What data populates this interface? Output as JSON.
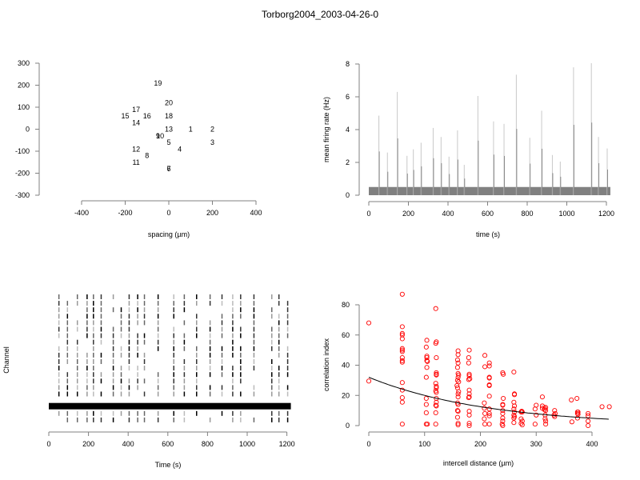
{
  "title": "Torborg2004_2003-04-26-0",
  "chart_data": [
    {
      "type": "scatter",
      "panel": "electrode-layout",
      "title": "",
      "xlabel": "spacing (µm)",
      "ylabel": "",
      "xlim": [
        -400,
        400
      ],
      "ylim": [
        -300,
        300
      ],
      "xticks": [
        -400,
        -200,
        0,
        200,
        400
      ],
      "yticks": [
        -300,
        -200,
        -100,
        0,
        100,
        200,
        300
      ],
      "marker": "text-label",
      "points": [
        {
          "label": "1",
          "x": 100,
          "y": 0
        },
        {
          "label": "2",
          "x": 200,
          "y": 0
        },
        {
          "label": "3",
          "x": 200,
          "y": -60
        },
        {
          "label": "4",
          "x": 50,
          "y": -90
        },
        {
          "label": "5",
          "x": 0,
          "y": -60
        },
        {
          "label": "6",
          "x": 0,
          "y": -180
        },
        {
          "label": "7",
          "x": 0,
          "y": -180
        },
        {
          "label": "8",
          "x": -100,
          "y": -120
        },
        {
          "label": "9",
          "x": -50,
          "y": -30
        },
        {
          "label": "10",
          "x": -40,
          "y": -30
        },
        {
          "label": "11",
          "x": -150,
          "y": -150
        },
        {
          "label": "12",
          "x": -150,
          "y": -90
        },
        {
          "label": "13",
          "x": 0,
          "y": 0
        },
        {
          "label": "14",
          "x": -150,
          "y": 30
        },
        {
          "label": "15",
          "x": -200,
          "y": 60
        },
        {
          "label": "16",
          "x": -100,
          "y": 60
        },
        {
          "label": "17",
          "x": -150,
          "y": 90
        },
        {
          "label": "18",
          "x": 0,
          "y": 60
        },
        {
          "label": "19",
          "x": -50,
          "y": 210
        },
        {
          "label": "20",
          "x": 0,
          "y": 120
        }
      ]
    },
    {
      "type": "area",
      "panel": "mean-firing-rate",
      "title": "",
      "xlabel": "time (s)",
      "ylabel": "mean firing rate (Hz)",
      "xlim": [
        0,
        1200
      ],
      "ylim": [
        0,
        8
      ],
      "xticks": [
        0,
        200,
        400,
        600,
        800,
        1000,
        1200
      ],
      "yticks": [
        0,
        2,
        4,
        6,
        8
      ],
      "baseline_rate": 0.5,
      "duration": 1220,
      "color": "#808080",
      "peaks": [
        {
          "t": 51,
          "rate": 4.85
        },
        {
          "t": 94,
          "rate": 2.6
        },
        {
          "t": 144,
          "rate": 6.3
        },
        {
          "t": 193,
          "rate": 2.4
        },
        {
          "t": 225,
          "rate": 2.8
        },
        {
          "t": 264,
          "rate": 3.2
        },
        {
          "t": 325,
          "rate": 4.1
        },
        {
          "t": 365,
          "rate": 3.55
        },
        {
          "t": 405,
          "rate": 2.35
        },
        {
          "t": 448,
          "rate": 3.95
        },
        {
          "t": 482,
          "rate": 1.85
        },
        {
          "t": 551,
          "rate": 6.05
        },
        {
          "t": 630,
          "rate": 4.5
        },
        {
          "t": 683,
          "rate": 4.35
        },
        {
          "t": 745,
          "rate": 7.35
        },
        {
          "t": 813,
          "rate": 3.5
        },
        {
          "t": 873,
          "rate": 5.15
        },
        {
          "t": 927,
          "rate": 2.45
        },
        {
          "t": 967,
          "rate": 2.05
        },
        {
          "t": 1034,
          "rate": 7.8
        },
        {
          "t": 1124,
          "rate": 8.05
        },
        {
          "t": 1160,
          "rate": 3.55
        },
        {
          "t": 1204,
          "rate": 2.85
        }
      ]
    },
    {
      "type": "raster",
      "panel": "spike-raster",
      "title": "",
      "xlabel": "Time (s)",
      "ylabel": "Channel",
      "xlim": [
        0,
        1200
      ],
      "xticks": [
        0,
        200,
        400,
        600,
        800,
        1000,
        1200
      ],
      "duration": 1220,
      "channels": 20,
      "saturated_channel": 4,
      "burst_times": [
        51,
        94,
        144,
        193,
        225,
        264,
        325,
        365,
        405,
        448,
        482,
        551,
        630,
        683,
        745,
        813,
        873,
        927,
        967,
        1034,
        1124,
        1160,
        1204
      ]
    },
    {
      "type": "scatter",
      "panel": "correlation-vs-distance",
      "title": "",
      "xlabel": "intercell distance (µm)",
      "ylabel": "correlation index",
      "xlim": [
        0,
        430
      ],
      "ylim": [
        0,
        87
      ],
      "xticks": [
        0,
        100,
        200,
        300,
        400
      ],
      "yticks": [
        0,
        20,
        40,
        60,
        80
      ],
      "marker_color": "#ff0000",
      "fit_line": {
        "type": "exponential",
        "a": 32,
        "b": 0.0047,
        "x_range": [
          0,
          430
        ],
        "color": "#000000"
      },
      "points": [
        [
          0,
          68
        ],
        [
          0,
          29.5
        ],
        [
          60,
          87
        ],
        [
          60,
          65.5
        ],
        [
          60,
          61
        ],
        [
          60,
          60
        ],
        [
          60,
          57.5
        ],
        [
          60,
          51
        ],
        [
          60,
          50
        ],
        [
          60,
          49
        ],
        [
          60,
          45
        ],
        [
          60,
          43
        ],
        [
          60,
          42
        ],
        [
          60,
          28.5
        ],
        [
          60,
          23.5
        ],
        [
          60,
          18.5
        ],
        [
          60,
          15.5
        ],
        [
          60,
          1
        ],
        [
          104,
          56.5
        ],
        [
          103,
          52
        ],
        [
          104,
          46
        ],
        [
          104,
          45
        ],
        [
          104,
          43
        ],
        [
          105,
          42.5
        ],
        [
          104,
          38.5
        ],
        [
          103,
          32
        ],
        [
          103,
          18
        ],
        [
          103,
          14
        ],
        [
          103,
          8.5
        ],
        [
          103,
          1
        ],
        [
          105,
          1
        ],
        [
          120,
          77.5
        ],
        [
          121,
          55.5
        ],
        [
          120,
          54.5
        ],
        [
          121,
          45
        ],
        [
          121,
          35
        ],
        [
          121,
          34
        ],
        [
          121,
          33.5
        ],
        [
          120,
          28
        ],
        [
          121,
          26
        ],
        [
          121,
          25
        ],
        [
          120,
          23
        ],
        [
          121,
          22
        ],
        [
          121,
          18
        ],
        [
          121,
          15.5
        ],
        [
          120,
          13.5
        ],
        [
          121,
          13
        ],
        [
          120,
          8.5
        ],
        [
          120,
          1
        ],
        [
          160,
          49.5
        ],
        [
          160,
          47
        ],
        [
          159,
          43.5
        ],
        [
          160,
          41.5
        ],
        [
          159,
          38.5
        ],
        [
          160,
          34.5
        ],
        [
          161,
          33.5
        ],
        [
          160,
          32
        ],
        [
          159,
          30
        ],
        [
          161,
          29
        ],
        [
          158,
          26.5
        ],
        [
          159,
          25
        ],
        [
          161,
          22.5
        ],
        [
          160,
          21
        ],
        [
          160,
          19
        ],
        [
          159,
          15
        ],
        [
          160,
          14
        ],
        [
          159,
          10
        ],
        [
          160,
          9.5
        ],
        [
          159,
          5.5
        ],
        [
          160,
          1.5
        ],
        [
          160,
          0.5
        ],
        [
          180,
          50
        ],
        [
          179,
          45
        ],
        [
          179,
          41.5
        ],
        [
          180,
          34
        ],
        [
          180,
          33
        ],
        [
          181,
          31
        ],
        [
          179,
          30.5
        ],
        [
          180,
          23.5
        ],
        [
          180,
          21
        ],
        [
          180,
          19
        ],
        [
          179,
          18.5
        ],
        [
          180,
          9.5
        ],
        [
          180,
          7
        ],
        [
          180,
          1.5
        ],
        [
          180,
          0
        ],
        [
          208,
          46.5
        ],
        [
          208,
          39
        ],
        [
          207,
          15
        ],
        [
          207,
          11.5
        ],
        [
          208,
          8
        ],
        [
          207,
          4.5
        ],
        [
          208,
          1
        ],
        [
          216,
          41.5
        ],
        [
          216,
          39.5
        ],
        [
          216,
          32
        ],
        [
          216,
          31.5
        ],
        [
          216,
          27
        ],
        [
          216,
          26.5
        ],
        [
          216,
          19.5
        ],
        [
          216,
          11
        ],
        [
          216,
          8
        ],
        [
          216,
          6.5
        ],
        [
          216,
          1
        ],
        [
          240,
          35
        ],
        [
          241,
          34
        ],
        [
          241,
          18
        ],
        [
          240,
          14
        ],
        [
          240,
          13.5
        ],
        [
          240,
          10
        ],
        [
          240,
          8
        ],
        [
          240,
          5
        ],
        [
          240,
          3
        ],
        [
          239,
          1
        ],
        [
          240,
          0
        ],
        [
          260,
          35.5
        ],
        [
          261,
          21
        ],
        [
          261,
          20.5
        ],
        [
          260,
          15.5
        ],
        [
          261,
          13
        ],
        [
          260,
          11
        ],
        [
          261,
          9
        ],
        [
          260,
          7
        ],
        [
          261,
          6
        ],
        [
          260,
          5
        ],
        [
          260,
          2
        ],
        [
          274,
          9.5
        ],
        [
          273,
          9
        ],
        [
          275,
          9
        ],
        [
          273,
          4.5
        ],
        [
          275,
          3
        ],
        [
          273,
          1.5
        ],
        [
          275,
          0.5
        ],
        [
          298,
          11
        ],
        [
          300,
          13.5
        ],
        [
          300,
          7
        ],
        [
          298,
          1
        ],
        [
          311,
          19
        ],
        [
          311,
          13
        ],
        [
          311,
          11.5
        ],
        [
          315,
          11.5
        ],
        [
          315,
          10.5
        ],
        [
          317,
          12
        ],
        [
          317,
          10
        ],
        [
          316,
          7
        ],
        [
          316,
          4.5
        ],
        [
          317,
          3
        ],
        [
          317,
          1
        ],
        [
          333,
          10
        ],
        [
          334,
          8
        ],
        [
          332,
          7
        ],
        [
          333,
          6
        ],
        [
          363,
          17
        ],
        [
          364,
          2.5
        ],
        [
          373,
          18
        ],
        [
          374,
          9
        ],
        [
          375,
          9
        ],
        [
          374,
          8
        ],
        [
          375,
          7.5
        ],
        [
          374,
          5
        ],
        [
          393,
          8
        ],
        [
          393,
          6.5
        ],
        [
          393,
          3
        ],
        [
          393,
          0
        ],
        [
          418,
          12.5
        ],
        [
          431,
          12.5
        ]
      ]
    }
  ]
}
